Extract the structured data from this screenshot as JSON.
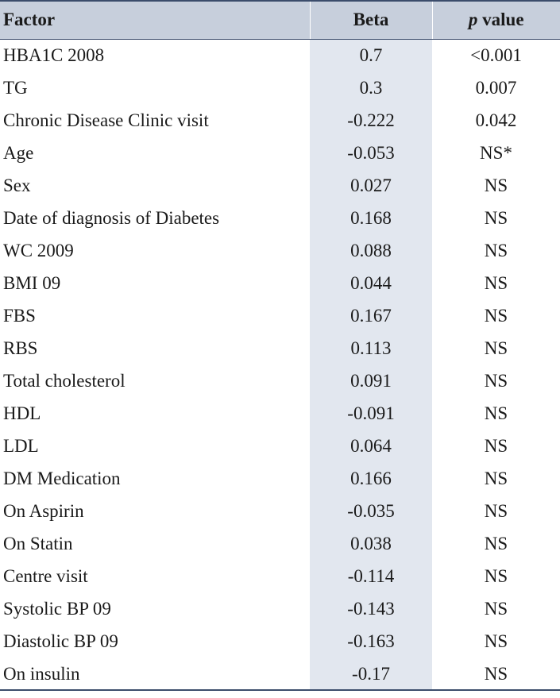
{
  "table": {
    "headers": {
      "factor": "Factor",
      "beta": "Beta",
      "p_italic": "p",
      "p_rest": " value"
    },
    "rows": [
      {
        "factor": "HBA1C 2008",
        "beta": "0.7",
        "p": "<0.001"
      },
      {
        "factor": "TG",
        "beta": "0.3",
        "p": "0.007"
      },
      {
        "factor": "Chronic Disease Clinic visit",
        "beta": "-0.222",
        "p": "0.042"
      },
      {
        "factor": "Age",
        "beta": "-0.053",
        "p": "NS*"
      },
      {
        "factor": "Sex",
        "beta": "0.027",
        "p": "NS"
      },
      {
        "factor": "Date of diagnosis of Diabetes",
        "beta": "0.168",
        "p": "NS"
      },
      {
        "factor": "WC 2009",
        "beta": "0.088",
        "p": "NS"
      },
      {
        "factor": "BMI 09",
        "beta": "0.044",
        "p": "NS"
      },
      {
        "factor": "FBS",
        "beta": "0.167",
        "p": "NS"
      },
      {
        "factor": "RBS",
        "beta": "0.113",
        "p": "NS"
      },
      {
        "factor": "Total cholesterol",
        "beta": "0.091",
        "p": "NS"
      },
      {
        "factor": "HDL",
        "beta": "-0.091",
        "p": "NS"
      },
      {
        "factor": "LDL",
        "beta": "0.064",
        "p": "NS"
      },
      {
        "factor": "DM Medication",
        "beta": "0.166",
        "p": "NS"
      },
      {
        "factor": "On Aspirin",
        "beta": "-0.035",
        "p": "NS"
      },
      {
        "factor": "On Statin",
        "beta": "0.038",
        "p": "NS"
      },
      {
        "factor": "Centre visit",
        "beta": "-0.114",
        "p": "NS"
      },
      {
        "factor": "Systolic BP 09",
        "beta": "-0.143",
        "p": "NS"
      },
      {
        "factor": "Diastolic BP 09",
        "beta": "-0.163",
        "p": "NS"
      },
      {
        "factor": "On insulin",
        "beta": "-0.17",
        "p": "NS"
      }
    ]
  },
  "colors": {
    "header_bg": "#c7cfdc",
    "beta_column_bg": "#e2e7ef",
    "rule": "#3b4c6b"
  }
}
